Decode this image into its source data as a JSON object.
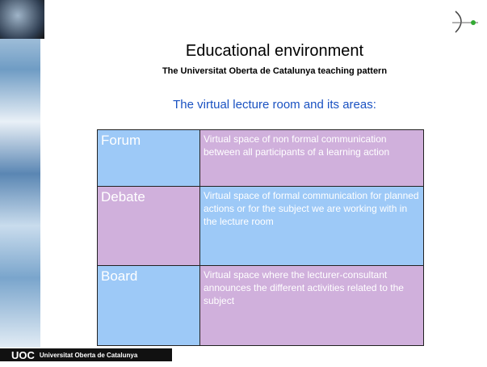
{
  "header": {
    "title": "Educational environment",
    "subtitle": "The Universitat Oberta de Catalunya teaching pattern"
  },
  "heading": "The virtual lecture room and its areas:",
  "table": {
    "rows": [
      [
        "Forum",
        "Virtual space of non formal communication between all participants of a learning action"
      ],
      [
        "Debate",
        "Virtual space of formal communication for planned actions or for the subject we are working with in the lecture room"
      ],
      [
        "Board",
        "Virtual space where the lecturer-consultant announces the different activities related to the subject"
      ]
    ]
  },
  "footer": {
    "logo": "UOC",
    "name": "Universitat Oberta de Catalunya"
  }
}
